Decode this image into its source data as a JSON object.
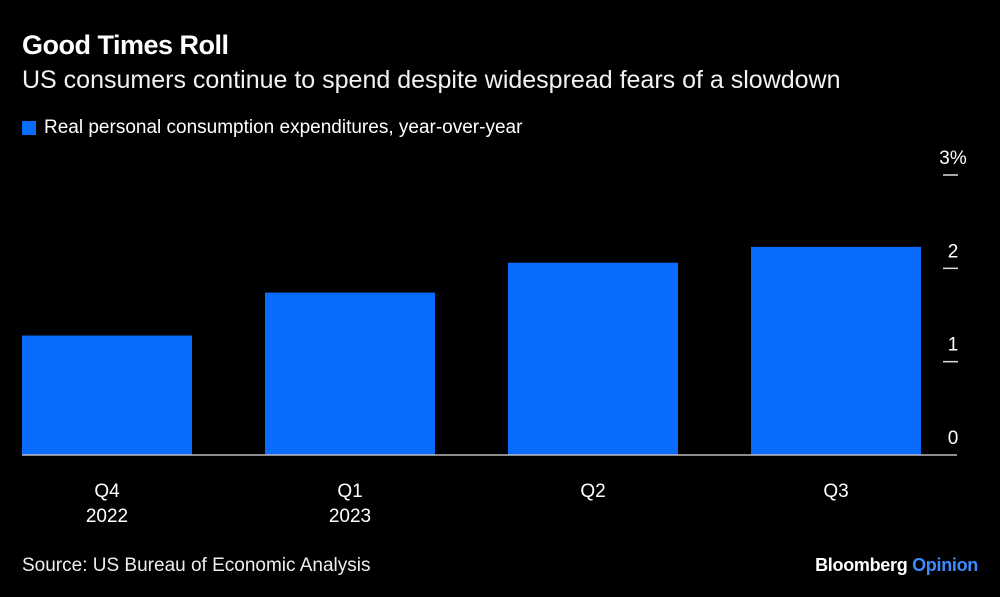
{
  "chart_data": {
    "type": "bar",
    "title": "Good Times Roll",
    "subtitle": "US consumers continue to spend despite widespread fears of a slowdown",
    "categories": [
      [
        "Q4",
        "2022"
      ],
      [
        "Q1",
        "2023"
      ],
      [
        "Q2",
        ""
      ],
      [
        "Q3",
        ""
      ]
    ],
    "series": [
      {
        "name": "Real personal consumption expenditures, year-over-year",
        "values": [
          1.28,
          1.74,
          2.06,
          2.23
        ],
        "color": "#0a6cff"
      }
    ],
    "ylim": [
      0,
      3
    ],
    "yticks": [
      "0",
      "1",
      "2",
      "3%"
    ],
    "ytick_values": [
      0,
      1,
      2,
      3
    ],
    "legend_position": "top-left",
    "xlabel": "",
    "ylabel": ""
  },
  "footer": {
    "source": "Source: US Bureau of Economic Analysis",
    "brand_main": "Bloomberg",
    "brand_accent": "Opinion",
    "brand_accent_color": "#3d8bff"
  }
}
